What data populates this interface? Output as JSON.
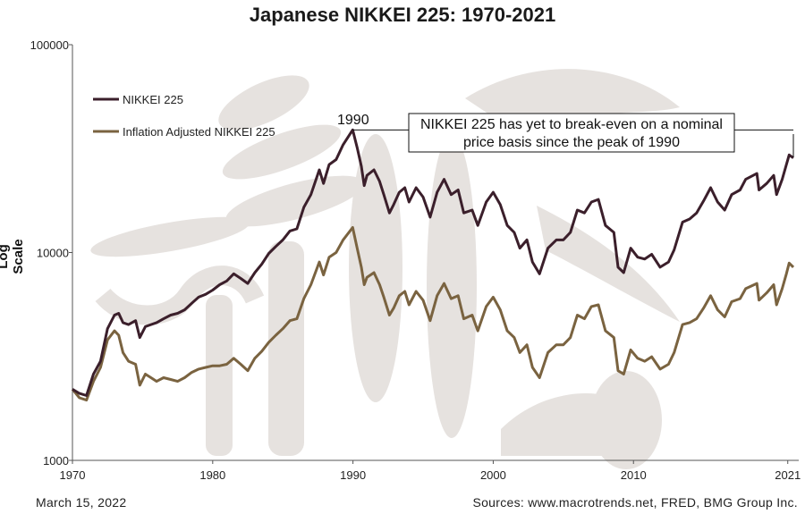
{
  "page": {
    "title": "Japanese NIKKEI 225: 1970-2021",
    "date": "March 15, 2022",
    "sources": "Sources: www.macrotrends.net, FRED, BMG Group Inc."
  },
  "colors": {
    "nikkei": "#3b1f2b",
    "inflation": "#7a6340",
    "watermark": "#e6e2df"
  },
  "chart_data": {
    "type": "line",
    "title": "Japanese NIKKEI 225: 1970-2021",
    "xlabel": "",
    "ylabel": "Log Scale",
    "yscale": "log",
    "xlim": [
      1970,
      2021.4
    ],
    "ylim": [
      1000,
      100000
    ],
    "x_ticks": [
      1970,
      1980,
      1990,
      2000,
      2010,
      2021
    ],
    "x_tick_labels": [
      "1970",
      "1980",
      "1990",
      "2000",
      "2010",
      "2021"
    ],
    "y_ticks": [
      1000,
      10000,
      100000
    ],
    "y_tick_labels": [
      "1000",
      "10000",
      "100000"
    ],
    "legend": [
      "NIKKEI 225",
      "Inflation Adjusted NIKKEI 225"
    ],
    "legend_position": "top-left",
    "annotations": {
      "peak_label": "1990",
      "box_line1": "NIKKEI 225 has yet to break-even on a nominal",
      "box_line2": "price basis since the peak of 1990"
    },
    "series": [
      {
        "name": "NIKKEI 225",
        "points": [
          [
            1970.0,
            2200
          ],
          [
            1970.5,
            2100
          ],
          [
            1971.0,
            2050
          ],
          [
            1971.5,
            2600
          ],
          [
            1972.0,
            3000
          ],
          [
            1972.5,
            4300
          ],
          [
            1973.0,
            5000
          ],
          [
            1973.3,
            5100
          ],
          [
            1973.6,
            4600
          ],
          [
            1974.0,
            4500
          ],
          [
            1974.5,
            4700
          ],
          [
            1974.8,
            3900
          ],
          [
            1975.2,
            4400
          ],
          [
            1975.6,
            4500
          ],
          [
            1976.0,
            4600
          ],
          [
            1976.5,
            4800
          ],
          [
            1977.0,
            5000
          ],
          [
            1977.5,
            5100
          ],
          [
            1978.0,
            5300
          ],
          [
            1978.5,
            5700
          ],
          [
            1979.0,
            6100
          ],
          [
            1979.5,
            6300
          ],
          [
            1980.0,
            6600
          ],
          [
            1980.5,
            7000
          ],
          [
            1981.0,
            7300
          ],
          [
            1981.5,
            7900
          ],
          [
            1982.0,
            7500
          ],
          [
            1982.5,
            7100
          ],
          [
            1983.0,
            8000
          ],
          [
            1983.5,
            8800
          ],
          [
            1984.0,
            9900
          ],
          [
            1984.5,
            10700
          ],
          [
            1985.0,
            11500
          ],
          [
            1985.5,
            12700
          ],
          [
            1986.0,
            13000
          ],
          [
            1986.5,
            16500
          ],
          [
            1987.0,
            19000
          ],
          [
            1987.6,
            25000
          ],
          [
            1987.9,
            21500
          ],
          [
            1988.3,
            26500
          ],
          [
            1988.8,
            28000
          ],
          [
            1989.3,
            33000
          ],
          [
            1989.98,
            38900
          ],
          [
            1990.3,
            32000
          ],
          [
            1990.6,
            26000
          ],
          [
            1990.8,
            21000
          ],
          [
            1991.0,
            23500
          ],
          [
            1991.5,
            25000
          ],
          [
            1991.9,
            22000
          ],
          [
            1992.2,
            19000
          ],
          [
            1992.6,
            15500
          ],
          [
            1992.9,
            17000
          ],
          [
            1993.3,
            19500
          ],
          [
            1993.7,
            20500
          ],
          [
            1994.0,
            17500
          ],
          [
            1994.5,
            20500
          ],
          [
            1995.0,
            18500
          ],
          [
            1995.5,
            14800
          ],
          [
            1996.0,
            19500
          ],
          [
            1996.5,
            22500
          ],
          [
            1997.0,
            19000
          ],
          [
            1997.5,
            20000
          ],
          [
            1997.9,
            15500
          ],
          [
            1998.5,
            16000
          ],
          [
            1998.9,
            13500
          ],
          [
            1999.5,
            17500
          ],
          [
            2000.0,
            19500
          ],
          [
            2000.5,
            17000
          ],
          [
            2001.0,
            13500
          ],
          [
            2001.5,
            12500
          ],
          [
            2001.9,
            10500
          ],
          [
            2002.4,
            11500
          ],
          [
            2002.8,
            9000
          ],
          [
            2003.3,
            7900
          ],
          [
            2003.9,
            10500
          ],
          [
            2004.5,
            11500
          ],
          [
            2005.0,
            11500
          ],
          [
            2005.5,
            12500
          ],
          [
            2006.0,
            16000
          ],
          [
            2006.5,
            15500
          ],
          [
            2007.0,
            17500
          ],
          [
            2007.5,
            18000
          ],
          [
            2008.0,
            13500
          ],
          [
            2008.6,
            12500
          ],
          [
            2008.9,
            8500
          ],
          [
            2009.3,
            8000
          ],
          [
            2009.8,
            10500
          ],
          [
            2010.3,
            9500
          ],
          [
            2010.8,
            9300
          ],
          [
            2011.3,
            9800
          ],
          [
            2011.9,
            8500
          ],
          [
            2012.5,
            9000
          ],
          [
            2012.9,
            10300
          ],
          [
            2013.5,
            14000
          ],
          [
            2014.0,
            14500
          ],
          [
            2014.5,
            15500
          ],
          [
            2015.0,
            17700
          ],
          [
            2015.5,
            20500
          ],
          [
            2016.0,
            17500
          ],
          [
            2016.5,
            16000
          ],
          [
            2017.0,
            19000
          ],
          [
            2017.6,
            20000
          ],
          [
            2018.0,
            22500
          ],
          [
            2018.8,
            24000
          ],
          [
            2018.95,
            20000
          ],
          [
            2019.5,
            21500
          ],
          [
            2020.0,
            23500
          ],
          [
            2020.2,
            19000
          ],
          [
            2020.6,
            22500
          ],
          [
            2020.9,
            26500
          ],
          [
            2021.1,
            29500
          ],
          [
            2021.4,
            28500
          ]
        ]
      },
      {
        "name": "Inflation Adjusted NIKKEI 225",
        "points": [
          [
            1970.0,
            2200
          ],
          [
            1970.5,
            2000
          ],
          [
            1971.0,
            1950
          ],
          [
            1971.5,
            2400
          ],
          [
            1972.0,
            2800
          ],
          [
            1972.5,
            3800
          ],
          [
            1973.0,
            4200
          ],
          [
            1973.3,
            4000
          ],
          [
            1973.6,
            3300
          ],
          [
            1974.0,
            3000
          ],
          [
            1974.5,
            2900
          ],
          [
            1974.8,
            2300
          ],
          [
            1975.2,
            2600
          ],
          [
            1975.6,
            2500
          ],
          [
            1976.0,
            2400
          ],
          [
            1976.5,
            2500
          ],
          [
            1977.0,
            2450
          ],
          [
            1977.5,
            2400
          ],
          [
            1978.0,
            2500
          ],
          [
            1978.5,
            2650
          ],
          [
            1979.0,
            2750
          ],
          [
            1979.5,
            2800
          ],
          [
            1980.0,
            2850
          ],
          [
            1980.5,
            2850
          ],
          [
            1981.0,
            2900
          ],
          [
            1981.5,
            3100
          ],
          [
            1982.0,
            2900
          ],
          [
            1982.5,
            2700
          ],
          [
            1983.0,
            3100
          ],
          [
            1983.5,
            3350
          ],
          [
            1984.0,
            3700
          ],
          [
            1984.5,
            4000
          ],
          [
            1985.0,
            4300
          ],
          [
            1985.5,
            4700
          ],
          [
            1986.0,
            4800
          ],
          [
            1986.5,
            6000
          ],
          [
            1987.0,
            7000
          ],
          [
            1987.6,
            9000
          ],
          [
            1987.9,
            7800
          ],
          [
            1988.3,
            9500
          ],
          [
            1988.8,
            10000
          ],
          [
            1989.3,
            11500
          ],
          [
            1989.98,
            13200
          ],
          [
            1990.3,
            10500
          ],
          [
            1990.6,
            8500
          ],
          [
            1990.8,
            7000
          ],
          [
            1991.0,
            7600
          ],
          [
            1991.5,
            8000
          ],
          [
            1991.9,
            7000
          ],
          [
            1992.2,
            6100
          ],
          [
            1992.6,
            5000
          ],
          [
            1992.9,
            5400
          ],
          [
            1993.3,
            6200
          ],
          [
            1993.7,
            6500
          ],
          [
            1994.0,
            5600
          ],
          [
            1994.5,
            6500
          ],
          [
            1995.0,
            5900
          ],
          [
            1995.5,
            4700
          ],
          [
            1996.0,
            6200
          ],
          [
            1996.5,
            7100
          ],
          [
            1997.0,
            6000
          ],
          [
            1997.5,
            6200
          ],
          [
            1997.9,
            4800
          ],
          [
            1998.5,
            5000
          ],
          [
            1998.9,
            4200
          ],
          [
            1999.5,
            5500
          ],
          [
            2000.0,
            6100
          ],
          [
            2000.5,
            5300
          ],
          [
            2001.0,
            4200
          ],
          [
            2001.5,
            3900
          ],
          [
            2001.9,
            3300
          ],
          [
            2002.4,
            3600
          ],
          [
            2002.8,
            2800
          ],
          [
            2003.3,
            2500
          ],
          [
            2003.9,
            3300
          ],
          [
            2004.5,
            3600
          ],
          [
            2005.0,
            3600
          ],
          [
            2005.5,
            3900
          ],
          [
            2006.0,
            5000
          ],
          [
            2006.5,
            4800
          ],
          [
            2007.0,
            5500
          ],
          [
            2007.5,
            5600
          ],
          [
            2008.0,
            4200
          ],
          [
            2008.6,
            3900
          ],
          [
            2008.9,
            2700
          ],
          [
            2009.3,
            2600
          ],
          [
            2009.8,
            3400
          ],
          [
            2010.3,
            3100
          ],
          [
            2010.8,
            3000
          ],
          [
            2011.3,
            3150
          ],
          [
            2011.9,
            2750
          ],
          [
            2012.5,
            2900
          ],
          [
            2012.9,
            3300
          ],
          [
            2013.5,
            4500
          ],
          [
            2014.0,
            4600
          ],
          [
            2014.5,
            4800
          ],
          [
            2015.0,
            5400
          ],
          [
            2015.5,
            6200
          ],
          [
            2016.0,
            5300
          ],
          [
            2016.5,
            4900
          ],
          [
            2017.0,
            5800
          ],
          [
            2017.6,
            6000
          ],
          [
            2018.0,
            6700
          ],
          [
            2018.8,
            7100
          ],
          [
            2018.95,
            5900
          ],
          [
            2019.5,
            6400
          ],
          [
            2020.0,
            7000
          ],
          [
            2020.2,
            5600
          ],
          [
            2020.6,
            6700
          ],
          [
            2020.9,
            7900
          ],
          [
            2021.1,
            8900
          ],
          [
            2021.4,
            8500
          ]
        ]
      }
    ]
  }
}
